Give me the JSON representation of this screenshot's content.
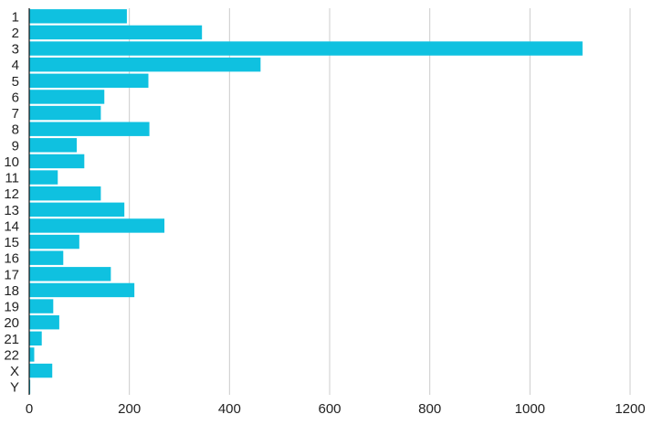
{
  "chart_data": {
    "type": "bar",
    "orientation": "horizontal",
    "categories": [
      "1",
      "2",
      "3",
      "4",
      "5",
      "6",
      "7",
      "8",
      "9",
      "10",
      "11",
      "12",
      "13",
      "14",
      "15",
      "16",
      "17",
      "18",
      "19",
      "20",
      "21",
      "22",
      "X",
      "Y"
    ],
    "values": [
      195,
      345,
      1105,
      462,
      238,
      150,
      143,
      240,
      95,
      110,
      57,
      143,
      190,
      270,
      100,
      68,
      163,
      210,
      48,
      60,
      25,
      10,
      46,
      2
    ],
    "xlim": [
      0,
      1200
    ],
    "xticks": [
      0,
      200,
      400,
      600,
      800,
      1000,
      1200
    ],
    "grid": "vertical",
    "legend": "none",
    "title": "",
    "xlabel": "",
    "ylabel": "",
    "colors": {
      "bar": "#0fc1e0",
      "grid": "#cccccc",
      "axis": "#111111"
    }
  }
}
